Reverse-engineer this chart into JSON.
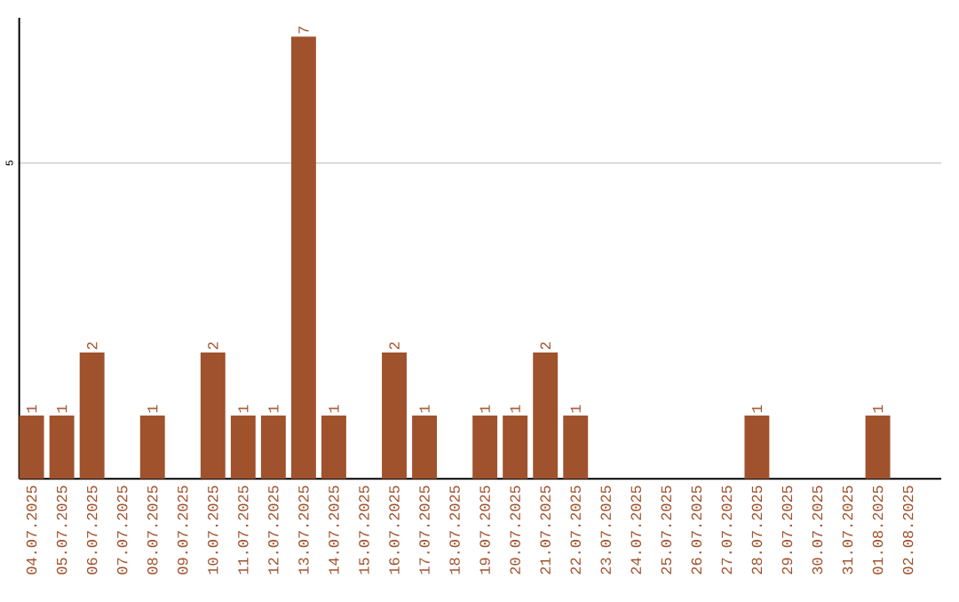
{
  "chart_data": {
    "type": "bar",
    "categories": [
      "04.07.2025",
      "05.07.2025",
      "06.07.2025",
      "07.07.2025",
      "08.07.2025",
      "09.07.2025",
      "10.07.2025",
      "11.07.2025",
      "12.07.2025",
      "13.07.2025",
      "14.07.2025",
      "15.07.2025",
      "16.07.2025",
      "17.07.2025",
      "18.07.2025",
      "19.07.2025",
      "20.07.2025",
      "21.07.2025",
      "22.07.2025",
      "23.07.2025",
      "24.07.2025",
      "25.07.2025",
      "26.07.2025",
      "27.07.2025",
      "28.07.2025",
      "29.07.2025",
      "30.07.2025",
      "31.07.2025",
      "01.08.2025",
      "02.08.2025"
    ],
    "values": [
      1,
      1,
      2,
      0,
      1,
      0,
      2,
      1,
      1,
      7,
      1,
      0,
      2,
      1,
      0,
      1,
      1,
      2,
      1,
      0,
      0,
      0,
      0,
      0,
      1,
      0,
      0,
      0,
      1,
      0
    ],
    "value_labels": [
      "1",
      "1",
      "2",
      null,
      "1",
      null,
      "2",
      "1",
      "1",
      "7",
      "1",
      null,
      "2",
      "1",
      null,
      "1",
      "1",
      "2",
      "1",
      null,
      null,
      null,
      null,
      null,
      "1",
      null,
      null,
      null,
      "1",
      null
    ],
    "color": "#a0522d",
    "ylim": [
      0,
      7.3
    ],
    "yticks": [
      5
    ],
    "grid": "y"
  }
}
